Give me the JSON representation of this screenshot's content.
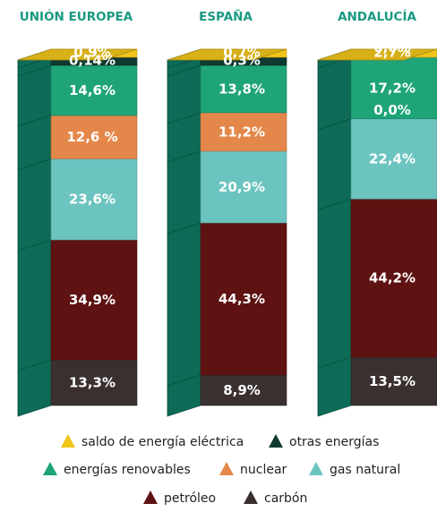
{
  "chart_data": {
    "type": "bar",
    "stacked": true,
    "categories": [
      "UNIÓN EUROPEA",
      "ESPAÑA",
      "ANDALUCÍA"
    ],
    "series": [
      {
        "name": "carbón",
        "color": "#3a3030",
        "values": [
          13.3,
          8.9,
          13.5
        ],
        "labels": [
          "13,3%",
          "8,9%",
          "13,5%"
        ]
      },
      {
        "name": "petróleo",
        "color": "#5e1212",
        "values": [
          34.9,
          44.3,
          44.2
        ],
        "labels": [
          "34,9%",
          "44,3%",
          "44,2%"
        ]
      },
      {
        "name": "gas natural",
        "color": "#6cc4c0",
        "values": [
          23.6,
          20.9,
          22.4
        ],
        "labels": [
          "23,6%",
          "20,9%",
          "22,4%"
        ]
      },
      {
        "name": "nuclear",
        "color": "#e4874a",
        "values": [
          12.6,
          11.2,
          0.0
        ],
        "labels": [
          "12,6 %",
          "11,2%",
          ""
        ]
      },
      {
        "name": "energías renovables",
        "color": "#1ea476",
        "values": [
          14.6,
          13.8,
          17.2
        ],
        "labels": [
          "14,6%",
          "13,8%",
          "17,2%"
        ]
      },
      {
        "name": "otras energías",
        "color": "#0f3a32",
        "values": [
          0.14,
          0.3,
          0.0
        ],
        "labels": [
          "0,14%",
          "0,3%",
          "0,0%"
        ]
      },
      {
        "name": "saldo de energía eléctrica",
        "color": "#f0c419",
        "values": [
          0.9,
          0.7,
          2.7
        ],
        "labels": [
          "0,9%",
          "0,7%",
          "2,7%"
        ]
      }
    ],
    "extra_labels": [
      {
        "category": "ANDALUCÍA",
        "text": "0,0%",
        "note": "nuclear"
      }
    ],
    "legend": [
      "saldo de energía eléctrica",
      "otras energías",
      "energías renovables",
      "nuclear",
      "gas natural",
      "petróleo",
      "carbón"
    ],
    "legend_position": "bottom",
    "ylim": [
      0,
      100
    ],
    "style": "3d-column"
  },
  "colors": {
    "title": "#1a9a82",
    "column_side": "#0d6b57",
    "column_front": "#177d68"
  }
}
